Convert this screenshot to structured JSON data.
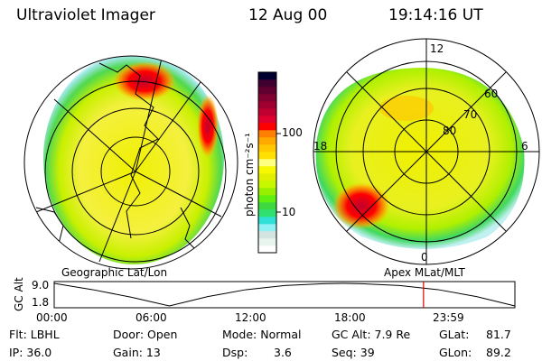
{
  "header": {
    "instrument": "Ultraviolet Imager",
    "date": "12 Aug 00",
    "time": "19:14:16 UT"
  },
  "colorbar": {
    "unit_label": "photon cm⁻²s⁻¹",
    "ticks": [
      "100",
      "10"
    ],
    "colors": [
      "#ffffff",
      "#e8f4ee",
      "#d4e4e0",
      "#90f0f4",
      "#30e0d8",
      "#30e070",
      "#40d840",
      "#60f010",
      "#98f000",
      "#c8f800",
      "#e0f000",
      "#f8f800",
      "#ffff80",
      "#ffe000",
      "#ffc800",
      "#ffa800",
      "#ff8000",
      "#ff0000",
      "#e00030",
      "#c00030",
      "#a00030",
      "#800030",
      "#600030",
      "#400030",
      "#000030"
    ]
  },
  "left_map": {
    "label": "Geographic Lat/Lon"
  },
  "right_map": {
    "label": "Apex MLat/MLT",
    "mlt_labels": [
      "12",
      "6",
      "18",
      "0"
    ],
    "lat_labels": [
      "60",
      "70",
      "80"
    ]
  },
  "chart_data": {
    "type": "line",
    "title": "",
    "ylabel": "GC Alt",
    "y_ticks": [
      "9.0",
      "1.8"
    ],
    "x_ticks": [
      "00:00",
      "06:00",
      "12:00",
      "18:00",
      "23:59"
    ],
    "xlim": [
      0,
      24
    ],
    "ylim": [
      1.8,
      9.0
    ],
    "series": [
      {
        "name": "GC Alt",
        "x": [
          0,
          2,
          4,
          6,
          8,
          10,
          12,
          14,
          15,
          16,
          18,
          20,
          22,
          24
        ],
        "y": [
          9.0,
          7.0,
          4.6,
          1.8,
          4.8,
          7.0,
          8.3,
          8.9,
          9.0,
          8.9,
          8.3,
          7.0,
          4.8,
          1.8
        ]
      }
    ],
    "marker_time_hours": 19.24,
    "marker_color": "#e00000"
  },
  "info": {
    "flt": "Flt: LBHL",
    "ip": "IP: 36.0",
    "door": "Door: Open",
    "gain": "Gain: 13",
    "mode": "Mode: Normal",
    "dsp_label": "Dsp:",
    "dsp_value": "3.6",
    "gc_alt": "GC Alt: 7.9 Re",
    "seq": "Seq: 39",
    "glat_label": "GLat:",
    "glat_value": "81.7",
    "glon_label": "GLon:",
    "glon_value": "89.2"
  }
}
